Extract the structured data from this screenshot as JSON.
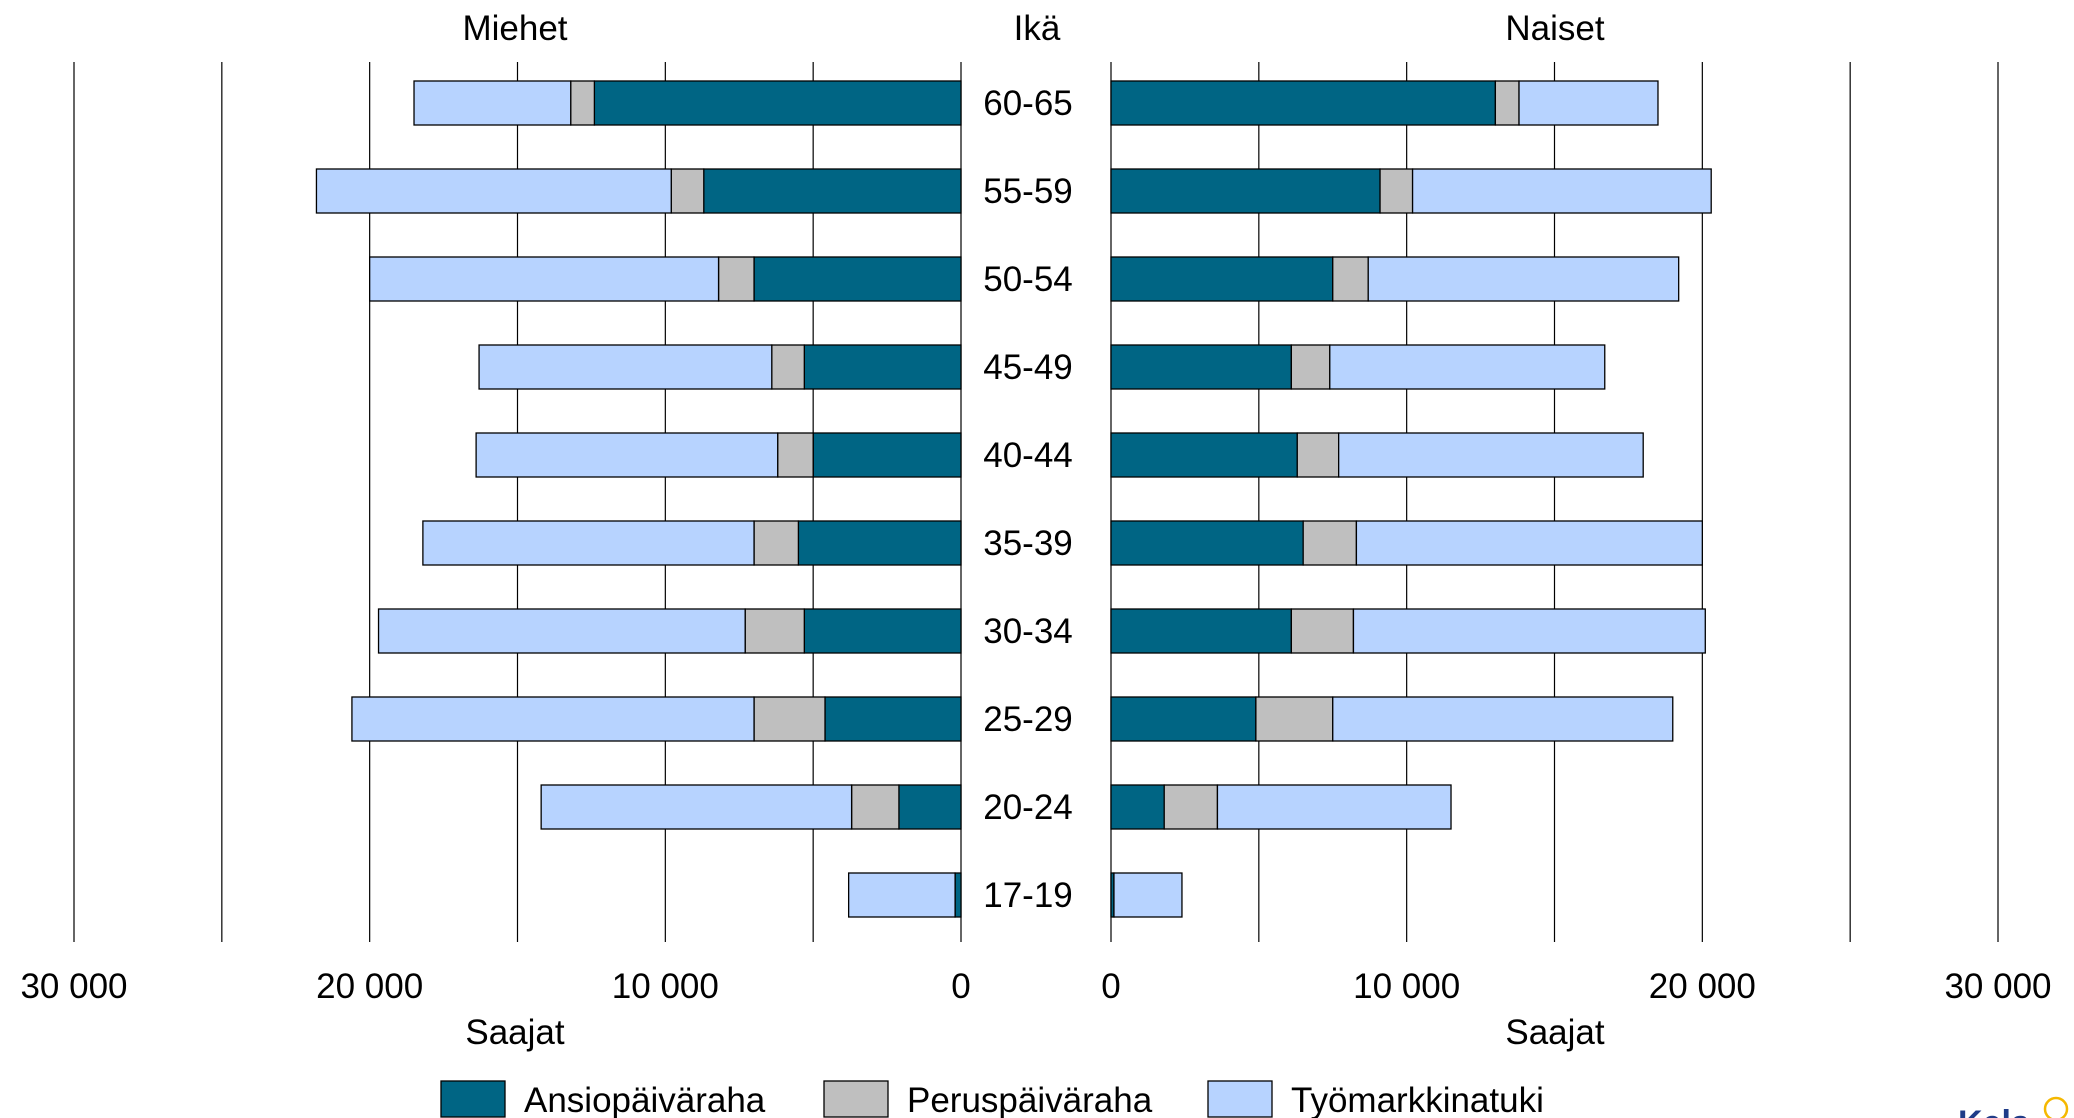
{
  "chart_data": {
    "type": "bar",
    "orientation": "horizontal",
    "layout": "population-pyramid",
    "center_label": "Ikä",
    "categories": [
      "60-65",
      "55-59",
      "50-54",
      "45-49",
      "40-44",
      "35-39",
      "30-34",
      "25-29",
      "20-24",
      "17-19"
    ],
    "left_panel": {
      "title": "Miehet",
      "xlabel": "Saajat",
      "xlim": [
        0,
        30000
      ],
      "ticks": [
        {
          "value": 30000,
          "label": "30 000"
        },
        {
          "value": 20000,
          "label": "20 000"
        },
        {
          "value": 10000,
          "label": "10 000"
        },
        {
          "value": 0,
          "label": "0"
        }
      ],
      "series": [
        {
          "name": "Ansiopäiväraha",
          "values": [
            12400,
            8700,
            7000,
            5300,
            5000,
            5500,
            5300,
            4600,
            2100,
            200
          ]
        },
        {
          "name": "Peruspäiväraha",
          "values": [
            800,
            1100,
            1200,
            1100,
            1200,
            1500,
            2000,
            2400,
            1600,
            0
          ]
        },
        {
          "name": "Työmarkkinatuki",
          "values": [
            5300,
            12000,
            11800,
            9900,
            10200,
            11200,
            12400,
            13600,
            10500,
            3600
          ]
        }
      ]
    },
    "right_panel": {
      "title": "Naiset",
      "xlabel": "Saajat",
      "xlim": [
        0,
        30000
      ],
      "ticks": [
        {
          "value": 0,
          "label": "0"
        },
        {
          "value": 10000,
          "label": "10 000"
        },
        {
          "value": 20000,
          "label": "20 000"
        },
        {
          "value": 30000,
          "label": "30 000"
        }
      ],
      "series": [
        {
          "name": "Ansiopäiväraha",
          "values": [
            13000,
            9100,
            7500,
            6100,
            6300,
            6500,
            6100,
            4900,
            1800,
            100
          ]
        },
        {
          "name": "Peruspäiväraha",
          "values": [
            800,
            1100,
            1200,
            1300,
            1400,
            1800,
            2100,
            2600,
            1800,
            0
          ]
        },
        {
          "name": "Työmarkkinatuki",
          "values": [
            4700,
            10100,
            10500,
            9300,
            10300,
            11700,
            11900,
            11500,
            7900,
            2300
          ]
        }
      ]
    },
    "grid": true,
    "legend_position": "bottom",
    "legend": [
      "Ansiopäiväraha",
      "Peruspäiväraha",
      "Työmarkkinatuki"
    ],
    "colors": {
      "Ansiopäiväraha": "#006584",
      "Peruspäiväraha": "#bfbfbf",
      "Työmarkkinatuki": "#b7d3ff"
    }
  },
  "logo": {
    "text": "Kela"
  }
}
